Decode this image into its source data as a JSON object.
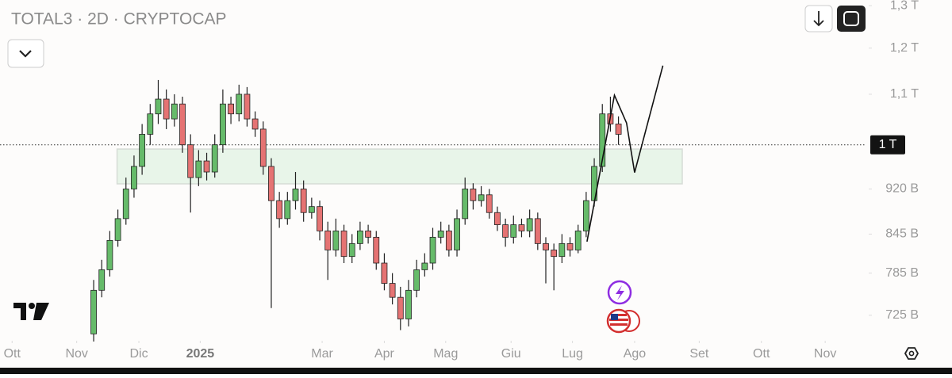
{
  "chart_data": {
    "type": "candlestick",
    "title": "TOTAL3 · 2D · CRYPTOCAP",
    "log": true,
    "ylim": [
      691,
      1314
    ],
    "yticks": [
      {
        "value": 725,
        "label": "725 B"
      },
      {
        "value": 785,
        "label": "785 B"
      },
      {
        "value": 845,
        "label": "845 B"
      },
      {
        "value": 920,
        "label": "920 B"
      },
      {
        "value": 1100,
        "label": "1,1 T"
      },
      {
        "value": 1200,
        "label": "1,2 T"
      },
      {
        "value": 1300,
        "label": "1,3 T"
      }
    ],
    "xlim": [
      -11.6,
      95.5
    ],
    "xticks": [
      {
        "value": -10.1,
        "label": "Ott"
      },
      {
        "value": -2.1,
        "label": "Nov"
      },
      {
        "value": 5.6,
        "label": "Dic"
      },
      {
        "value": 13.2,
        "label": "2025"
      },
      {
        "value": 28.3,
        "label": "Mar"
      },
      {
        "value": 36,
        "label": "Apr"
      },
      {
        "value": 43.6,
        "label": "Mag"
      },
      {
        "value": 51.7,
        "label": "Giu"
      },
      {
        "value": 59.3,
        "label": "Lug"
      },
      {
        "value": 67,
        "label": "Ago"
      },
      {
        "value": 75,
        "label": "Set"
      },
      {
        "value": 82.7,
        "label": "Ott"
      },
      {
        "value": 90.6,
        "label": "Nov"
      }
    ],
    "up_color": "#66bb6a",
    "down_color": "#e57373",
    "wick_color": "#222222",
    "open": [
      700,
      760,
      790,
      835,
      870,
      920,
      960,
      1020,
      1060,
      1090,
      1050,
      1080,
      1000,
      940,
      970,
      950,
      1000,
      1080,
      1060,
      1100,
      1050,
      1030,
      960,
      900,
      870,
      900,
      920,
      880,
      890,
      850,
      820,
      850,
      810,
      830,
      850,
      840,
      800,
      770,
      750,
      720,
      760,
      790,
      800,
      840,
      850,
      820,
      870,
      920,
      900,
      910,
      880,
      860,
      840,
      860,
      850,
      870,
      830,
      820,
      810,
      830,
      820,
      850,
      900,
      960,
      1060,
      1040
    ],
    "high": [
      775,
      805,
      850,
      885,
      940,
      980,
      1040,
      1080,
      1130,
      1110,
      1100,
      1095,
      1020,
      990,
      985,
      1020,
      1110,
      1095,
      1120,
      1115,
      1065,
      1045,
      975,
      915,
      915,
      950,
      935,
      905,
      900,
      865,
      870,
      860,
      845,
      865,
      860,
      850,
      815,
      785,
      765,
      775,
      805,
      815,
      855,
      865,
      860,
      885,
      940,
      930,
      925,
      920,
      890,
      870,
      875,
      870,
      885,
      880,
      840,
      830,
      845,
      840,
      860,
      915,
      975,
      1080,
      1095,
      1055
    ],
    "low": [
      690,
      750,
      780,
      825,
      860,
      905,
      945,
      1000,
      1040,
      1030,
      1035,
      985,
      880,
      925,
      935,
      940,
      985,
      1040,
      1045,
      1035,
      1015,
      945,
      735,
      855,
      860,
      885,
      865,
      870,
      835,
      775,
      810,
      800,
      800,
      820,
      830,
      790,
      760,
      740,
      705,
      710,
      750,
      780,
      790,
      830,
      810,
      810,
      860,
      885,
      890,
      870,
      850,
      825,
      830,
      840,
      840,
      820,
      770,
      760,
      800,
      810,
      815,
      840,
      890,
      950,
      1025,
      1000
    ],
    "close": [
      760,
      790,
      835,
      870,
      920,
      960,
      1020,
      1060,
      1090,
      1050,
      1080,
      1000,
      940,
      970,
      950,
      1000,
      1080,
      1060,
      1100,
      1050,
      1030,
      960,
      900,
      870,
      900,
      920,
      880,
      890,
      850,
      820,
      850,
      810,
      830,
      850,
      840,
      800,
      770,
      750,
      720,
      760,
      790,
      800,
      840,
      850,
      820,
      870,
      920,
      900,
      910,
      880,
      860,
      840,
      860,
      850,
      870,
      830,
      820,
      810,
      830,
      820,
      850,
      900,
      960,
      1060,
      1040,
      1020
    ],
    "zone": {
      "x": [
        2.9,
        72.9
      ],
      "y": [
        929,
        992
      ],
      "color": "#e8f5e9"
    },
    "projection": {
      "x": [
        61.1,
        64.5,
        66,
        67,
        70.5
      ],
      "y": [
        833,
        1098,
        1042,
        949,
        1161
      ],
      "color": "#111111"
    },
    "price_line": {
      "value": 1000,
      "label": "1 T"
    }
  }
}
